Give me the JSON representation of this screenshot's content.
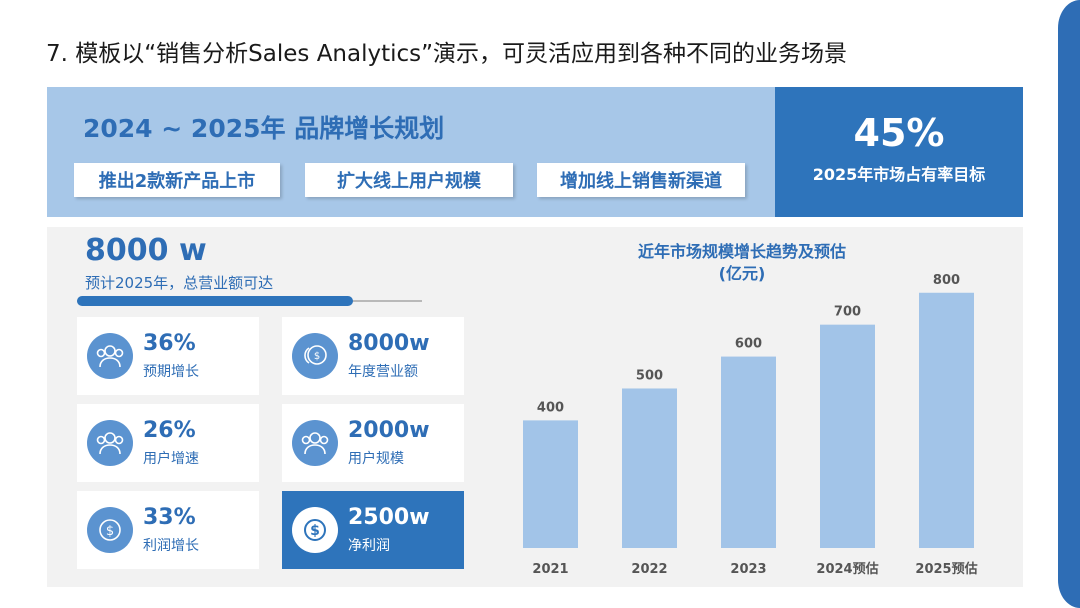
{
  "page_title": "7. 模板以“销售分析Sales Analytics”演示，可灵活应用到各种不同的业务场景",
  "banner": {
    "title": "2024 ~ 2025年 品牌增长规划",
    "initiatives": [
      "推出2款新产品上市",
      "扩大线上用户规模",
      "增加线上销售新渠道"
    ]
  },
  "kpi": {
    "value": "45%",
    "label": "2025年市场占有率目标"
  },
  "revenue": {
    "value": "8000 w",
    "description": "预计2025年，总营业额可达",
    "progress": 0.8
  },
  "stats": [
    {
      "value": "36%",
      "label": "预期增长",
      "icon": "users-icon"
    },
    {
      "value": "8000w",
      "label": "年度营业额",
      "icon": "coins-icon"
    },
    {
      "value": "26%",
      "label": "用户增速",
      "icon": "users-icon"
    },
    {
      "value": "2000w",
      "label": "用户规模",
      "icon": "users-icon"
    },
    {
      "value": "33%",
      "label": "利润增长",
      "icon": "dollar-icon"
    },
    {
      "value": "2500w",
      "label": "净利润",
      "icon": "dollar-icon"
    }
  ],
  "colors": {
    "primary": "#2e74bb",
    "light": "#a7c7e8",
    "bar": "#a2c4e8",
    "panel": "#f2f2f2"
  },
  "chart_data": {
    "type": "bar",
    "title_line1": "近年市场规模增长趋势及预估",
    "title_line2": "(亿元)",
    "categories": [
      "2021",
      "2022",
      "2023",
      "2024预估",
      "2025预估"
    ],
    "values": [
      400,
      500,
      600,
      700,
      800
    ],
    "ylim": [
      0,
      840
    ],
    "grid": false,
    "legend": "none"
  }
}
